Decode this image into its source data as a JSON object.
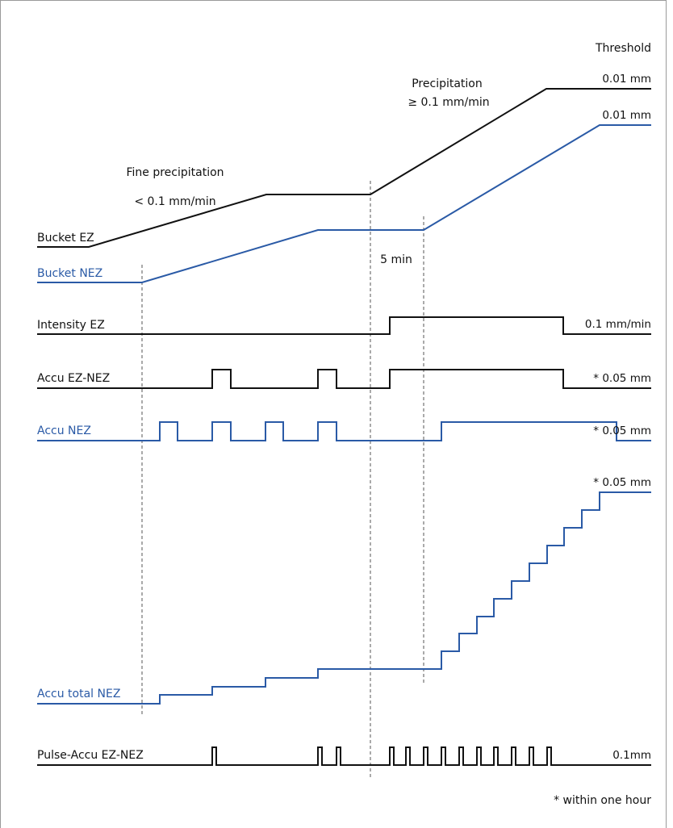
{
  "header": {
    "threshold": "Threshold"
  },
  "annotations": {
    "precip_high_line1": "Precipitation",
    "precip_high_line2": "≥ 0.1 mm/min",
    "fine_precip": "Fine precipitation",
    "fine_rate": "< 0.1 mm/min",
    "five_min": "5 min",
    "footnote": "* within one hour"
  },
  "signals": [
    {
      "id": "bucket_ez",
      "label": "Bucket EZ",
      "threshold": "0.01 mm",
      "color": "#111111"
    },
    {
      "id": "bucket_nez",
      "label": "Bucket NEZ",
      "threshold": "0.01 mm",
      "color": "#2a5aa6"
    },
    {
      "id": "intensity_ez",
      "label": "Intensity EZ",
      "threshold": "0.1 mm/min",
      "color": "#111111"
    },
    {
      "id": "accu_ez_nez",
      "label": "Accu EZ-NEZ",
      "threshold": "* 0.05 mm",
      "color": "#111111"
    },
    {
      "id": "accu_nez",
      "label": "Accu NEZ",
      "threshold": "* 0.05 mm",
      "color": "#2a5aa6"
    },
    {
      "id": "accu_total_nez",
      "label": "Accu total NEZ",
      "threshold": "* 0.05 mm",
      "color": "#2a5aa6"
    },
    {
      "id": "pulse_accu",
      "label": "Pulse-Accu EZ-NEZ",
      "threshold": "0.1mm",
      "color": "#111111"
    }
  ]
}
